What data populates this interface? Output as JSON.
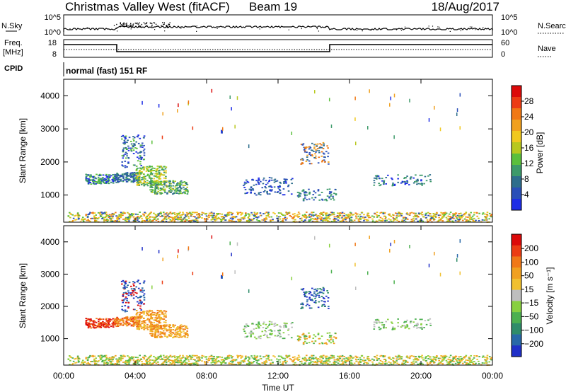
{
  "header": {
    "title": "Christmas Valley West (fitACF)",
    "beam": "Beam 19",
    "date": "18/Aug/2017"
  },
  "top_panels": {
    "nsky_label": "N.Sky",
    "nsearch_label": "N.Search",
    "nsky_ticks": [
      "10^5",
      "10^0"
    ],
    "nsearch_ticks": [
      "10^5",
      "10^0"
    ],
    "freq_label_1": "Freq.",
    "freq_label_2": "[MHz]",
    "freq_ticks": [
      "18",
      "8"
    ],
    "nave_label": "Nave",
    "nave_ticks": [
      "60",
      "0"
    ],
    "cpid_label": "CPID",
    "cpid_value": "normal (fast) 151 RF"
  },
  "chart_data": [
    {
      "type": "heatmap",
      "name": "power",
      "ylabel": "Slant Range [km]",
      "yticks": [
        "1000",
        "2000",
        "3000",
        "4000"
      ],
      "xlim_hours": [
        0,
        24
      ],
      "ylim_km": [
        180,
        4500
      ],
      "colorbar_label": "Power [dB]",
      "colorbar_ticks": [
        "4",
        "8",
        "12",
        "16",
        "20",
        "24",
        "28"
      ],
      "colorbar_colors": [
        "#1e2de6",
        "#2a4fb8",
        "#2e6e8c",
        "#3d9a6a",
        "#5bbf3c",
        "#b8c81e",
        "#f0c81e",
        "#f0a01e",
        "#f07814",
        "#ec3c14",
        "#dc0a0a"
      ]
    },
    {
      "type": "heatmap",
      "name": "velocity",
      "xlabel": "Time UT",
      "ylabel": "Slant Range [km]",
      "yticks": [
        "1000",
        "2000",
        "3000",
        "4000"
      ],
      "xticks": [
        "00:00",
        "04:00",
        "08:00",
        "12:00",
        "16:00",
        "20:00",
        "00:00"
      ],
      "xlim_hours": [
        0,
        24
      ],
      "ylim_km": [
        180,
        4500
      ],
      "colorbar_label": "Velocity [m s⁻¹]",
      "colorbar_ticks": [
        "200",
        "100",
        "50",
        "15",
        "−15",
        "−50",
        "−100",
        "−200"
      ],
      "colorbar_colors": [
        "#2030c8",
        "#2868a8",
        "#2f8c6a",
        "#4cb050",
        "#88d040",
        "#bebebe",
        "#f0c030",
        "#f0a020",
        "#f07818",
        "#ec3c14",
        "#dc0a0a"
      ]
    }
  ]
}
